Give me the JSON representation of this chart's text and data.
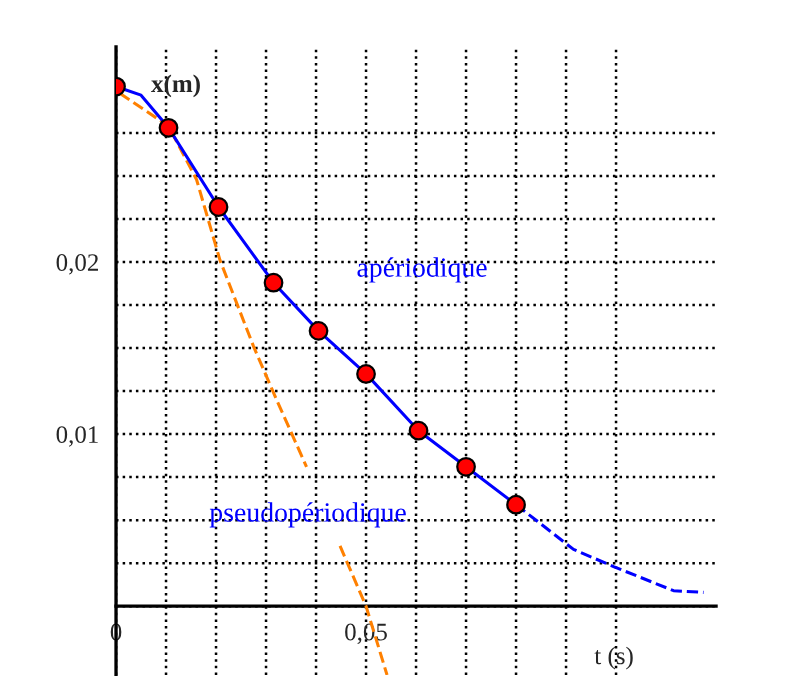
{
  "chart_data": {
    "type": "line",
    "xlabel": "t (s)",
    "ylabel": "x(m)",
    "xlim": [
      0,
      0.12
    ],
    "ylim": [
      -0.004,
      0.0325
    ],
    "xticks": [
      {
        "value": 0,
        "label": "0"
      },
      {
        "value": 0.01,
        "label": null
      },
      {
        "value": 0.02,
        "label": null
      },
      {
        "value": 0.03,
        "label": null
      },
      {
        "value": 0.04,
        "label": null
      },
      {
        "value": 0.05,
        "label": "0,05"
      },
      {
        "value": 0.06,
        "label": null
      },
      {
        "value": 0.07,
        "label": null
      },
      {
        "value": 0.08,
        "label": null
      },
      {
        "value": 0.09,
        "label": null
      },
      {
        "value": 0.1,
        "label": null
      }
    ],
    "yticks": [
      {
        "value": 0,
        "label": null
      },
      {
        "value": 0.0025,
        "label": null
      },
      {
        "value": 0.005,
        "label": null
      },
      {
        "value": 0.0075,
        "label": null
      },
      {
        "value": 0.01,
        "label": "0,01"
      },
      {
        "value": 0.0125,
        "label": null
      },
      {
        "value": 0.015,
        "label": null
      },
      {
        "value": 0.0175,
        "label": null
      },
      {
        "value": 0.02,
        "label": "0,02"
      },
      {
        "value": 0.0225,
        "label": null
      },
      {
        "value": 0.025,
        "label": null
      },
      {
        "value": 0.0275,
        "label": null
      }
    ],
    "grid": true,
    "series": [
      {
        "color": "#ff8000",
        "line_style": "dashed",
        "x": [
          0.0008,
          0.0105,
          0.0161,
          0.0208,
          0.0275,
          0.0321,
          0.0381,
          0.041,
          0.0448,
          0.05,
          0.0542
        ],
        "values": [
          0.0298,
          0.0279,
          0.0248,
          0.0201,
          0.0151,
          0.012,
          0.0081,
          null,
          0.0035,
          0.0,
          -0.004
        ]
      },
      {
        "color": "#0000ff",
        "line_style": "solid",
        "x": [
          0,
          0.005,
          0.0105,
          0.0205,
          0.0315,
          0.0405,
          0.05,
          0.0605,
          0.07,
          0.08
        ],
        "values": [
          0.0302,
          0.0297,
          0.0278,
          0.0232,
          0.0188,
          0.016,
          0.0135,
          0.0102,
          0.0081,
          0.0059
        ]
      },
      {
        "color": "#0000ff",
        "line_style": "dashed",
        "x": [
          0.08,
          0.0915,
          0.0995,
          0.1115,
          0.1175
        ],
        "values": [
          0.0059,
          0.0033,
          0.0023,
          0.0009,
          0.0008
        ]
      },
      {
        "type": "scatter",
        "color": "#ff0000",
        "marker": "circle",
        "x": [
          0,
          0.0105,
          0.0205,
          0.0315,
          0.0405,
          0.05,
          0.0605,
          0.07,
          0.08
        ],
        "values": [
          0.0302,
          0.0278,
          0.0232,
          0.0188,
          0.016,
          0.0135,
          0.0102,
          0.0081,
          0.0059
        ]
      }
    ],
    "annotations": [
      "apériodique",
      "pseudopériodique"
    ]
  }
}
